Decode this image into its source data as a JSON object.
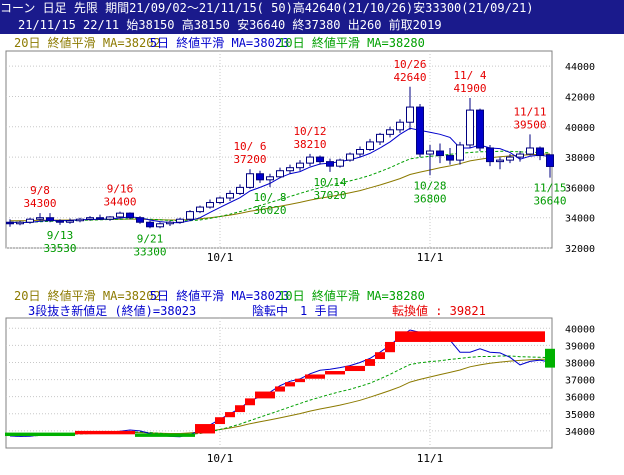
{
  "header": {
    "line1": "コーン 日足 先限 期間21/09/02～21/11/15( 50)高42640(21/10/26)安33300(21/09/21)",
    "line2": "21/11/15 22/11 始38150 高38150 安36640 終37380 出260 前取2019"
  },
  "colors": {
    "header_bg": "#1a1a8c",
    "ma20": "#8c7a00",
    "ma5": "#0000cc",
    "ma10": "#00a000",
    "peak_label": "#e60000",
    "trough_label": "#009a00",
    "up_candle": "#ffffff",
    "down_candle": "#0000cc",
    "brick_up": "#ff0000",
    "brick_down": "#00b000",
    "info_text": "#0000cc",
    "info_red": "#e60000"
  },
  "chart_data": [
    {
      "type": "candlestick",
      "legend": [
        {
          "text": "20日 終値平滑 MA=38202",
          "color": "#8c7a00"
        },
        {
          "text": "5日 終値平滑 MA=38023",
          "color": "#0000cc"
        },
        {
          "text": "10日 終値平滑 MA=38280",
          "color": "#00a000"
        }
      ],
      "ylim": [
        32000,
        45000
      ],
      "yticks": [
        32000,
        34000,
        36000,
        38000,
        40000,
        42000,
        44000
      ],
      "xtick_labels": [
        {
          "label": "10/1",
          "index": 21
        },
        {
          "label": "11/1",
          "index": 42
        }
      ],
      "candles": [
        {
          "o": 33700,
          "h": 33900,
          "l": 33400,
          "c": 33600
        },
        {
          "o": 33600,
          "h": 33800,
          "l": 33500,
          "c": 33700
        },
        {
          "o": 33700,
          "h": 34000,
          "l": 33600,
          "c": 33900
        },
        {
          "o": 33900,
          "h": 34300,
          "l": 33800,
          "c": 34000
        },
        {
          "o": 34000,
          "h": 34300,
          "l": 33700,
          "c": 33800
        },
        {
          "o": 33800,
          "h": 33900,
          "l": 33530,
          "c": 33700
        },
        {
          "o": 33700,
          "h": 33950,
          "l": 33600,
          "c": 33800
        },
        {
          "o": 33800,
          "h": 34000,
          "l": 33700,
          "c": 33900
        },
        {
          "o": 33900,
          "h": 34100,
          "l": 33800,
          "c": 34000
        },
        {
          "o": 34000,
          "h": 34200,
          "l": 33850,
          "c": 33900
        },
        {
          "o": 33900,
          "h": 34100,
          "l": 33800,
          "c": 34050
        },
        {
          "o": 34050,
          "h": 34400,
          "l": 33950,
          "c": 34300
        },
        {
          "o": 34300,
          "h": 34350,
          "l": 33900,
          "c": 34000
        },
        {
          "o": 34000,
          "h": 34100,
          "l": 33600,
          "c": 33700
        },
        {
          "o": 33700,
          "h": 33800,
          "l": 33300,
          "c": 33400
        },
        {
          "o": 33400,
          "h": 33700,
          "l": 33300,
          "c": 33600
        },
        {
          "o": 33600,
          "h": 33800,
          "l": 33450,
          "c": 33700
        },
        {
          "o": 33700,
          "h": 34000,
          "l": 33600,
          "c": 33900
        },
        {
          "o": 33900,
          "h": 34500,
          "l": 33800,
          "c": 34400
        },
        {
          "o": 34400,
          "h": 34800,
          "l": 34300,
          "c": 34700
        },
        {
          "o": 34700,
          "h": 35200,
          "l": 34600,
          "c": 35000
        },
        {
          "o": 35000,
          "h": 35400,
          "l": 34900,
          "c": 35300
        },
        {
          "o": 35300,
          "h": 35800,
          "l": 35100,
          "c": 35600
        },
        {
          "o": 35600,
          "h": 36200,
          "l": 35500,
          "c": 36000
        },
        {
          "o": 36000,
          "h": 37200,
          "l": 35900,
          "c": 36900
        },
        {
          "o": 36900,
          "h": 37100,
          "l": 36300,
          "c": 36500
        },
        {
          "o": 36500,
          "h": 36900,
          "l": 36020,
          "c": 36700
        },
        {
          "o": 36700,
          "h": 37300,
          "l": 36600,
          "c": 37100
        },
        {
          "o": 37100,
          "h": 37500,
          "l": 36900,
          "c": 37300
        },
        {
          "o": 37300,
          "h": 37800,
          "l": 37100,
          "c": 37600
        },
        {
          "o": 37600,
          "h": 38210,
          "l": 37400,
          "c": 38000
        },
        {
          "o": 38000,
          "h": 38100,
          "l": 37500,
          "c": 37700
        },
        {
          "o": 37700,
          "h": 37900,
          "l": 37020,
          "c": 37400
        },
        {
          "o": 37400,
          "h": 37900,
          "l": 37300,
          "c": 37800
        },
        {
          "o": 37800,
          "h": 38300,
          "l": 37700,
          "c": 38200
        },
        {
          "o": 38200,
          "h": 38700,
          "l": 38000,
          "c": 38500
        },
        {
          "o": 38500,
          "h": 39200,
          "l": 38400,
          "c": 39000
        },
        {
          "o": 39000,
          "h": 39600,
          "l": 38800,
          "c": 39500
        },
        {
          "o": 39500,
          "h": 40000,
          "l": 39300,
          "c": 39800
        },
        {
          "o": 39800,
          "h": 40500,
          "l": 39600,
          "c": 40300
        },
        {
          "o": 40300,
          "h": 42640,
          "l": 39800,
          "c": 41300
        },
        {
          "o": 41300,
          "h": 41500,
          "l": 38000,
          "c": 38200
        },
        {
          "o": 38200,
          "h": 38800,
          "l": 36800,
          "c": 38400
        },
        {
          "o": 38400,
          "h": 38900,
          "l": 37600,
          "c": 38100
        },
        {
          "o": 38100,
          "h": 38600,
          "l": 37500,
          "c": 37800
        },
        {
          "o": 37800,
          "h": 39000,
          "l": 37500,
          "c": 38800
        },
        {
          "o": 38800,
          "h": 41900,
          "l": 38600,
          "c": 41100
        },
        {
          "o": 41100,
          "h": 41200,
          "l": 38400,
          "c": 38600
        },
        {
          "o": 38600,
          "h": 38800,
          "l": 37400,
          "c": 37700
        },
        {
          "o": 37700,
          "h": 38000,
          "l": 37200,
          "c": 37800
        },
        {
          "o": 37800,
          "h": 38200,
          "l": 37600,
          "c": 38000
        },
        {
          "o": 38000,
          "h": 38400,
          "l": 37700,
          "c": 38200
        },
        {
          "o": 38200,
          "h": 39500,
          "l": 38100,
          "c": 38600
        },
        {
          "o": 38600,
          "h": 38700,
          "l": 37800,
          "c": 38100
        },
        {
          "o": 38150,
          "h": 38150,
          "l": 36640,
          "c": 37380
        }
      ],
      "ma20": [
        33800,
        33800,
        33810,
        33830,
        33840,
        33840,
        33850,
        33860,
        33870,
        33880,
        33890,
        33900,
        33910,
        33900,
        33880,
        33860,
        33850,
        33850,
        33880,
        33930,
        34000,
        34080,
        34170,
        34280,
        34420,
        34530,
        34640,
        34760,
        34880,
        35010,
        35160,
        35280,
        35390,
        35510,
        35640,
        35790,
        35970,
        36160,
        36360,
        36580,
        36850,
        37010,
        37150,
        37290,
        37420,
        37560,
        37750,
        37860,
        37950,
        38020,
        38080,
        38120,
        38160,
        38180,
        38202
      ],
      "ma5": [
        33700,
        33680,
        33690,
        33760,
        33820,
        33800,
        33820,
        33860,
        33880,
        33900,
        33920,
        33980,
        34050,
        34000,
        33850,
        33740,
        33680,
        33660,
        33800,
        34000,
        34350,
        34680,
        35000,
        35320,
        35760,
        36000,
        36260,
        36640,
        36900,
        37040,
        37340,
        37540,
        37600,
        37700,
        37820,
        38000,
        38240,
        38600,
        39000,
        39500,
        39900,
        39760,
        39640,
        39500,
        39300,
        38600,
        38600,
        38800,
        38600,
        38560,
        38300,
        37860,
        38060,
        38140,
        38023
      ],
      "ma10": [
        33700,
        33690,
        33700,
        33730,
        33760,
        33780,
        33800,
        33820,
        33840,
        33860,
        33880,
        33900,
        33930,
        33940,
        33900,
        33860,
        33820,
        33790,
        33800,
        33850,
        33950,
        34080,
        34230,
        34400,
        34600,
        34800,
        35000,
        35200,
        35400,
        35600,
        35800,
        35970,
        36140,
        36290,
        36430,
        36600,
        36790,
        37040,
        37300,
        37600,
        37880,
        37980,
        38050,
        38100,
        38180,
        38240,
        38300,
        38350,
        38350,
        38380,
        38380,
        38340,
        38320,
        38300,
        38280
      ],
      "peak_annotations": [
        {
          "date": "9/8",
          "value": "34300",
          "index": 3
        },
        {
          "date": "9/16",
          "value": "34400",
          "index": 11
        },
        {
          "date": "10/ 6",
          "value": "37200",
          "index": 24
        },
        {
          "date": "10/12",
          "value": "38210",
          "index": 30
        },
        {
          "date": "10/26",
          "value": "42640",
          "index": 40
        },
        {
          "date": "11/ 4",
          "value": "41900",
          "index": 46
        },
        {
          "date": "11/11",
          "value": "39500",
          "index": 52
        }
      ],
      "trough_annotations": [
        {
          "date": "9/13",
          "value": "33530",
          "index": 5
        },
        {
          "date": "9/21",
          "value": "33300",
          "index": 14
        },
        {
          "date": "10/ 8",
          "value": "36020",
          "index": 26
        },
        {
          "date": "10/14",
          "value": "37020",
          "index": 32
        },
        {
          "date": "10/28",
          "value": "36800",
          "index": 42
        },
        {
          "date": "11/15",
          "value": "36640",
          "index": 54
        }
      ]
    },
    {
      "type": "three-line-break",
      "legend": [
        {
          "text": "20日 終値平滑 MA=38202",
          "color": "#8c7a00"
        },
        {
          "text": "5日 終値平滑 MA=38023",
          "color": "#0000cc"
        },
        {
          "text": "10日 終値平滑 MA=38280",
          "color": "#00a000"
        }
      ],
      "info": {
        "left": "3段抜き新値足 (終値)=38023",
        "state": "陰転中　1 手目",
        "switch": "転換値 : 39821"
      },
      "ylim": [
        33000,
        40600
      ],
      "yticks": [
        34000,
        35000,
        36000,
        37000,
        38000,
        39000,
        40000
      ],
      "bricks": [
        {
          "i0": 0,
          "i1": 6,
          "from": 33700,
          "to": 33900,
          "dir": "down"
        },
        {
          "i0": 7,
          "i1": 12,
          "from": 33800,
          "to": 34000,
          "dir": "up"
        },
        {
          "i0": 13,
          "i1": 18,
          "from": 33650,
          "to": 33850,
          "dir": "down"
        },
        {
          "i0": 19,
          "i1": 20,
          "from": 33850,
          "to": 34400,
          "dir": "up"
        },
        {
          "i0": 21,
          "i1": 21,
          "from": 34400,
          "to": 34800,
          "dir": "up"
        },
        {
          "i0": 22,
          "i1": 22,
          "from": 34800,
          "to": 35100,
          "dir": "up"
        },
        {
          "i0": 23,
          "i1": 23,
          "from": 35100,
          "to": 35500,
          "dir": "up"
        },
        {
          "i0": 24,
          "i1": 24,
          "from": 35500,
          "to": 35900,
          "dir": "up"
        },
        {
          "i0": 25,
          "i1": 26,
          "from": 35900,
          "to": 36300,
          "dir": "up"
        },
        {
          "i0": 27,
          "i1": 27,
          "from": 36300,
          "to": 36600,
          "dir": "up"
        },
        {
          "i0": 28,
          "i1": 28,
          "from": 36600,
          "to": 36850,
          "dir": "up"
        },
        {
          "i0": 29,
          "i1": 29,
          "from": 36850,
          "to": 37050,
          "dir": "up"
        },
        {
          "i0": 30,
          "i1": 31,
          "from": 37050,
          "to": 37300,
          "dir": "up"
        },
        {
          "i0": 32,
          "i1": 33,
          "from": 37300,
          "to": 37500,
          "dir": "up"
        },
        {
          "i0": 34,
          "i1": 35,
          "from": 37500,
          "to": 37800,
          "dir": "up"
        },
        {
          "i0": 36,
          "i1": 36,
          "from": 37800,
          "to": 38200,
          "dir": "up"
        },
        {
          "i0": 37,
          "i1": 37,
          "from": 38200,
          "to": 38600,
          "dir": "up"
        },
        {
          "i0": 38,
          "i1": 38,
          "from": 38600,
          "to": 39200,
          "dir": "up"
        },
        {
          "i0": 39,
          "i1": 53,
          "from": 39200,
          "to": 39821,
          "dir": "up"
        },
        {
          "i0": 54,
          "i1": 54,
          "from": 37700,
          "to": 38800,
          "dir": "down"
        }
      ]
    }
  ]
}
